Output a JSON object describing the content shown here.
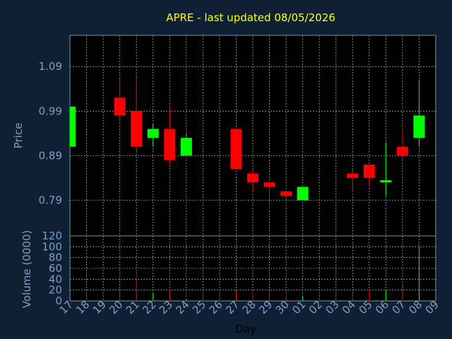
{
  "chart_data": {
    "type": "candlestick",
    "title": "APRE - last updated 08/05/2026",
    "xlabel": "Day",
    "ylabel": "Price",
    "volume_label": "Volume (0000)",
    "categories": [
      "17",
      "18",
      "19",
      "20",
      "21",
      "22",
      "23",
      "24",
      "25",
      "26",
      "27",
      "28",
      "29",
      "30",
      "01",
      "02",
      "03",
      "04",
      "05",
      "06",
      "07",
      "08",
      "09"
    ],
    "price_ylim": [
      0.71,
      1.16
    ],
    "price_ticks": [
      "0.79",
      "0.89",
      "0.99",
      "1.09"
    ],
    "price_tick_values": [
      0.79,
      0.89,
      0.99,
      1.09
    ],
    "volume_ylim": [
      0,
      120
    ],
    "volume_ticks": [
      "0",
      "20",
      "40",
      "60",
      "80",
      "100",
      "120"
    ],
    "volume_tick_values": [
      0,
      20,
      40,
      60,
      80,
      100,
      120
    ],
    "up_color": "#00ff00",
    "down_color": "#ff0000",
    "grid": true,
    "candles": [
      {
        "day": "17",
        "open": 0.91,
        "high": 1.0,
        "low": 0.91,
        "close": 1.0,
        "volume": 0
      },
      {
        "day": "20",
        "open": 1.02,
        "high": 1.06,
        "low": 0.96,
        "close": 0.98,
        "volume": 25
      },
      {
        "day": "21",
        "open": 0.99,
        "high": 1.07,
        "low": 0.9,
        "close": 0.91,
        "volume": 40
      },
      {
        "day": "22",
        "open": 0.93,
        "high": 0.96,
        "low": 0.91,
        "close": 0.95,
        "volume": 15
      },
      {
        "day": "23",
        "open": 0.95,
        "high": 1.0,
        "low": 0.87,
        "close": 0.88,
        "volume": 22
      },
      {
        "day": "24",
        "open": 0.89,
        "high": 0.94,
        "low": 0.89,
        "close": 0.93,
        "volume": 3
      },
      {
        "day": "27",
        "open": 0.95,
        "high": 0.95,
        "low": 0.86,
        "close": 0.86,
        "volume": 18
      },
      {
        "day": "28",
        "open": 0.85,
        "high": 0.86,
        "low": 0.81,
        "close": 0.83,
        "volume": 10
      },
      {
        "day": "29",
        "open": 0.83,
        "high": 0.83,
        "low": 0.77,
        "close": 0.82,
        "volume": 22
      },
      {
        "day": "30",
        "open": 0.81,
        "high": 0.81,
        "low": 0.8,
        "close": 0.8,
        "volume": 10
      },
      {
        "day": "01",
        "open": 0.79,
        "high": 0.82,
        "low": 0.79,
        "close": 0.82,
        "volume": 8
      },
      {
        "day": "04",
        "open": 0.85,
        "high": 0.86,
        "low": 0.81,
        "close": 0.84,
        "volume": 5
      },
      {
        "day": "05",
        "open": 0.87,
        "high": 0.87,
        "low": 0.82,
        "close": 0.84,
        "volume": 22
      },
      {
        "day": "06",
        "open": 0.83,
        "high": 0.92,
        "low": 0.8,
        "close": 0.835,
        "volume": 20
      },
      {
        "day": "07",
        "open": 0.91,
        "high": 0.95,
        "low": 0.88,
        "close": 0.89,
        "volume": 33
      },
      {
        "day": "08",
        "open": 0.93,
        "high": 1.06,
        "low": 0.91,
        "close": 0.98,
        "volume": 100
      }
    ]
  }
}
